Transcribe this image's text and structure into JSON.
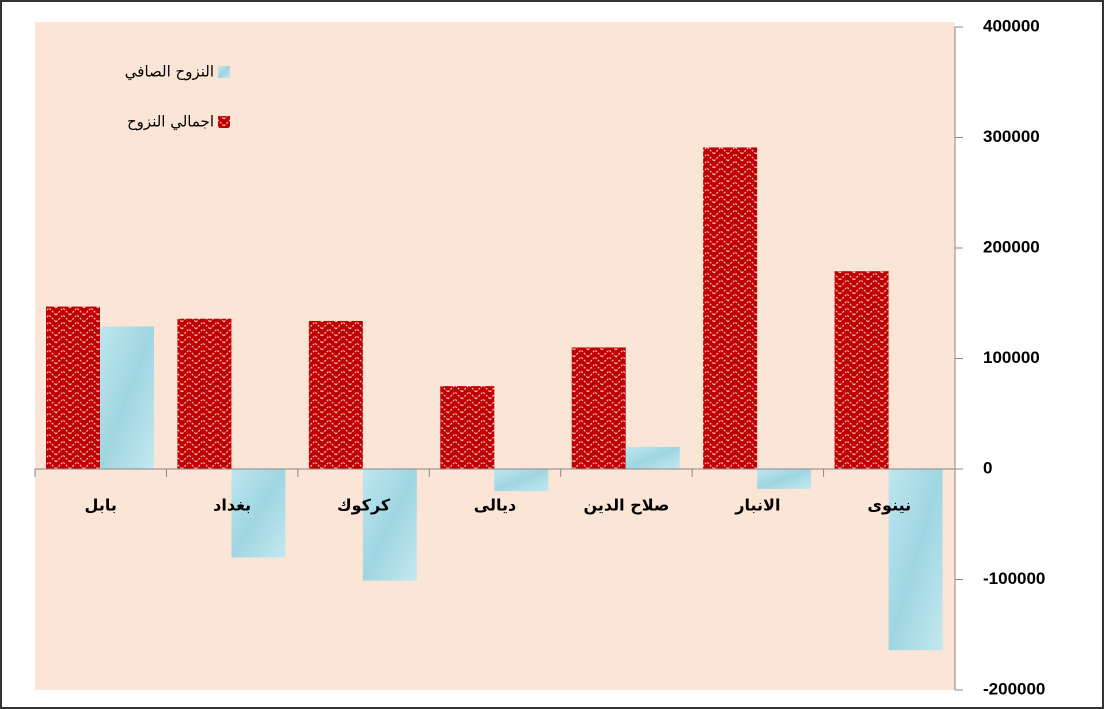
{
  "chart_data": {
    "type": "bar",
    "categories": [
      "بابل",
      "بغداد",
      "كركوك",
      "ديالى",
      "صلاح الدين",
      "الانبار",
      "نينوى"
    ],
    "series": [
      {
        "name": "اجمالي النزوح",
        "color": "#c00000",
        "values": [
          147000,
          136000,
          134000,
          75000,
          110000,
          291000,
          179000
        ]
      },
      {
        "name": "النزوح الصافي",
        "color": "#a6dce6",
        "values": [
          129000,
          -80000,
          -101000,
          -20000,
          20000,
          -18000,
          -164000
        ]
      }
    ],
    "ylim": [
      -200000,
      400000
    ],
    "yticks": [
      -200000,
      -100000,
      0,
      100000,
      200000,
      300000,
      400000
    ],
    "axis_side": "right",
    "legend": "top-left"
  }
}
